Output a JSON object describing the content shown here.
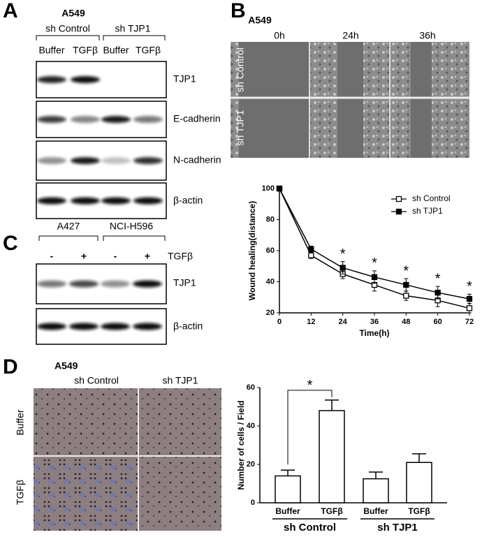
{
  "panels": {
    "a": {
      "letter": "A",
      "cell_line": "A549",
      "groups": [
        "sh Control",
        "sh TJP1"
      ],
      "lanes": [
        "Buffer",
        "TGFβ",
        "Buffer",
        "TGFβ"
      ],
      "proteins": [
        "TJP1",
        "E-cadherin",
        "N-cadherin",
        "β-actin"
      ]
    },
    "b": {
      "letter": "B",
      "cell_line": "A549",
      "times": [
        "0h",
        "24h",
        "36h"
      ],
      "rows": [
        "sh Control",
        "sh TJP1"
      ]
    },
    "c": {
      "letter": "C",
      "cells": [
        "A427",
        "NCI-H596"
      ],
      "treatment": "TGFβ",
      "lanes": [
        "-",
        "+",
        "-",
        "+"
      ],
      "proteins": [
        "TJP1",
        "β-actin"
      ]
    },
    "d": {
      "letter": "D",
      "cell_line": "A549",
      "cols": [
        "sh Control",
        "sh TJP1"
      ],
      "rows": [
        "Buffer",
        "TGFβ"
      ]
    }
  },
  "chart_data": [
    {
      "type": "line",
      "xlabel": "Time(h)",
      "ylabel": "Wound healing(distance)",
      "x": [
        0,
        12,
        24,
        36,
        48,
        60,
        72
      ],
      "series": [
        {
          "name": "sh Control",
          "color": "#000000",
          "marker": "open-square",
          "values": [
            100,
            57,
            45,
            38,
            31,
            28,
            23
          ],
          "errors": [
            0,
            2,
            3,
            4,
            3,
            4,
            3
          ]
        },
        {
          "name": "sh TJP1",
          "color": "#000000",
          "marker": "filled-square",
          "values": [
            100,
            61,
            49,
            43,
            38,
            33,
            29
          ],
          "errors": [
            0,
            2,
            4,
            4,
            4,
            4,
            3
          ]
        }
      ],
      "annotations": [
        {
          "x": 24,
          "text": "*"
        },
        {
          "x": 36,
          "text": "*"
        },
        {
          "x": 48,
          "text": "*"
        },
        {
          "x": 60,
          "text": "*"
        },
        {
          "x": 72,
          "text": "*"
        }
      ],
      "xlim": [
        0,
        72
      ],
      "xticks": [
        0,
        12,
        24,
        36,
        48,
        60,
        72
      ],
      "ylim": [
        20,
        100
      ],
      "yticks": [
        20,
        40,
        60,
        80,
        100
      ],
      "legend": "top-right"
    },
    {
      "type": "bar",
      "ylabel": "Number of cells / Field",
      "categories": [
        "Buffer",
        "TGFβ",
        "Buffer",
        "TGFβ"
      ],
      "groups": [
        "sh Control",
        "sh TJP1"
      ],
      "values": [
        14,
        48,
        12.5,
        21
      ],
      "errors": [
        3,
        5.5,
        3.5,
        4.5
      ],
      "color": "#ffffff",
      "significance": "*",
      "ylim": [
        0,
        60
      ],
      "yticks": [
        0,
        20,
        40,
        60
      ]
    }
  ]
}
